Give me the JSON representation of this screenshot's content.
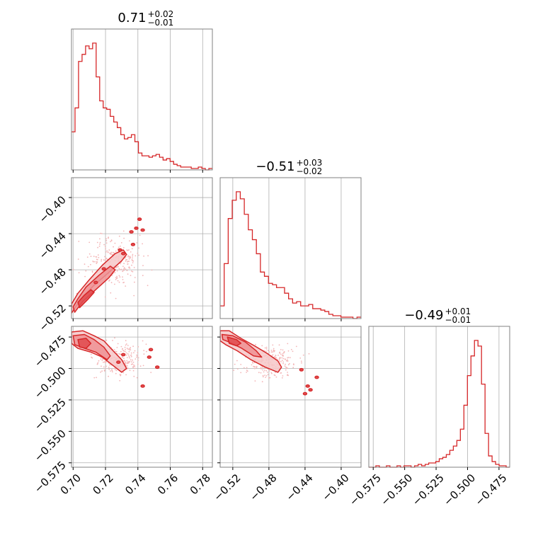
{
  "colors": {
    "accent": "#d62728",
    "fill_light": "#f6c7c8",
    "fill_mid": "#ee9093",
    "fill_dark": "#e04a4e",
    "grid": "#b0b0b0",
    "frame": "#808080",
    "scatter": "#f3b6b7"
  },
  "chart_data": {
    "type": "corner",
    "parameters": [
      {
        "title": {
          "median": "0.71",
          "plus": "+0.02",
          "minus": "−0.01"
        },
        "range": [
          0.699,
          0.786
        ],
        "ticks": [
          0.7,
          0.72,
          0.74,
          0.76,
          0.78
        ],
        "tick_labels": [
          "0.70",
          "0.72",
          "0.74",
          "0.76",
          "0.78"
        ],
        "histogram": [
          0.27,
          0.44,
          0.77,
          0.82,
          0.88,
          0.86,
          0.9,
          0.66,
          0.49,
          0.44,
          0.43,
          0.38,
          0.34,
          0.3,
          0.25,
          0.22,
          0.23,
          0.25,
          0.2,
          0.12,
          0.1,
          0.1,
          0.09,
          0.1,
          0.11,
          0.09,
          0.07,
          0.08,
          0.06,
          0.04,
          0.03,
          0.02,
          0.02,
          0.02,
          0.01,
          0.01,
          0.02,
          0.01,
          0.0,
          0.01
        ]
      },
      {
        "title": {
          "median": "−0.51",
          "plus": "+0.03",
          "minus": "−0.02"
        },
        "range": [
          -0.534,
          -0.378
        ],
        "ticks": [
          -0.52,
          -0.48,
          -0.44,
          -0.4
        ],
        "tick_labels": [
          "−0.52",
          "−0.48",
          "−0.44",
          "−0.40"
        ],
        "histogram": [
          0.09,
          0.39,
          0.71,
          0.84,
          0.9,
          0.85,
          0.74,
          0.63,
          0.56,
          0.46,
          0.33,
          0.3,
          0.25,
          0.24,
          0.22,
          0.22,
          0.18,
          0.14,
          0.11,
          0.12,
          0.09,
          0.09,
          0.1,
          0.07,
          0.07,
          0.06,
          0.05,
          0.03,
          0.02,
          0.02,
          0.01,
          0.01,
          0.01,
          0.0,
          0.01
        ]
      },
      {
        "title": {
          "median": "−0.49",
          "plus": "+0.01",
          "minus": "−0.01"
        },
        "range": [
          -0.5785,
          -0.4665
        ],
        "ticks": [
          -0.575,
          -0.55,
          -0.525,
          -0.5,
          -0.475
        ],
        "tick_labels": [
          "−0.575",
          "−0.550",
          "−0.525",
          "−0.500",
          "−0.475"
        ],
        "histogram": [
          0.0,
          0.0,
          0.01,
          0.0,
          0.0,
          0.01,
          0.0,
          0.0,
          0.01,
          0.0,
          0.01,
          0.01,
          0.0,
          0.01,
          0.02,
          0.01,
          0.02,
          0.03,
          0.03,
          0.04,
          0.06,
          0.07,
          0.09,
          0.12,
          0.15,
          0.19,
          0.27,
          0.44,
          0.65,
          0.79,
          0.9,
          0.86,
          0.59,
          0.24,
          0.08,
          0.04,
          0.02,
          0.01,
          0.01,
          0.0
        ]
      }
    ],
    "contours": [
      {
        "x_param": 0,
        "y_param": 1,
        "levels": [
          {
            "points": [
              [
                0.699,
                -0.528
              ],
              [
                0.705,
                -0.512
              ],
              [
                0.713,
                -0.497
              ],
              [
                0.722,
                -0.483
              ],
              [
                0.73,
                -0.47
              ],
              [
                0.733,
                -0.463
              ],
              [
                0.731,
                -0.458
              ],
              [
                0.726,
                -0.462
              ],
              [
                0.718,
                -0.475
              ],
              [
                0.71,
                -0.491
              ],
              [
                0.703,
                -0.506
              ],
              [
                0.699,
                -0.518
              ]
            ]
          },
          {
            "points": [
              [
                0.701,
                -0.527
              ],
              [
                0.706,
                -0.515
              ],
              [
                0.714,
                -0.502
              ],
              [
                0.722,
                -0.489
              ],
              [
                0.726,
                -0.48
              ],
              [
                0.723,
                -0.476
              ],
              [
                0.716,
                -0.486
              ],
              [
                0.708,
                -0.499
              ],
              [
                0.703,
                -0.512
              ],
              [
                0.7,
                -0.521
              ]
            ]
          },
          {
            "points": [
              [
                0.704,
                -0.522
              ],
              [
                0.709,
                -0.513
              ],
              [
                0.713,
                -0.505
              ],
              [
                0.711,
                -0.502
              ],
              [
                0.707,
                -0.508
              ],
              [
                0.703,
                -0.516
              ]
            ]
          }
        ],
        "islands": [
          [
            0.741,
            -0.424
          ],
          [
            0.739,
            -0.434
          ],
          [
            0.743,
            -0.436
          ],
          [
            0.736,
            -0.438
          ],
          [
            0.729,
            -0.458
          ],
          [
            0.731,
            -0.462
          ],
          [
            0.737,
            -0.452
          ],
          [
            0.719,
            -0.479
          ],
          [
            0.714,
            -0.494
          ]
        ],
        "scatter_seed": 11,
        "scatter_center": [
          0.725,
          -0.47
        ],
        "scatter_spread": [
          0.018,
          0.03
        ]
      },
      {
        "x_param": 0,
        "y_param": 2,
        "levels": [
          {
            "points": [
              [
                0.699,
                -0.471
              ],
              [
                0.706,
                -0.47
              ],
              [
                0.713,
                -0.474
              ],
              [
                0.719,
                -0.478
              ],
              [
                0.724,
                -0.485
              ],
              [
                0.73,
                -0.493
              ],
              [
                0.733,
                -0.5
              ],
              [
                0.73,
                -0.503
              ],
              [
                0.724,
                -0.497
              ],
              [
                0.718,
                -0.491
              ],
              [
                0.711,
                -0.487
              ],
              [
                0.703,
                -0.484
              ],
              [
                0.699,
                -0.48
              ]
            ]
          },
          {
            "points": [
              [
                0.7,
                -0.474
              ],
              [
                0.707,
                -0.473
              ],
              [
                0.713,
                -0.477
              ],
              [
                0.719,
                -0.483
              ],
              [
                0.723,
                -0.49
              ],
              [
                0.721,
                -0.493
              ],
              [
                0.714,
                -0.487
              ],
              [
                0.707,
                -0.484
              ],
              [
                0.701,
                -0.481
              ]
            ]
          },
          {
            "points": [
              [
                0.703,
                -0.477
              ],
              [
                0.708,
                -0.476
              ],
              [
                0.711,
                -0.48
              ],
              [
                0.708,
                -0.484
              ],
              [
                0.704,
                -0.483
              ]
            ]
          }
        ],
        "islands": [
          [
            0.747,
            -0.491
          ],
          [
            0.752,
            -0.499
          ],
          [
            0.731,
            -0.489
          ],
          [
            0.728,
            -0.495
          ],
          [
            0.743,
            -0.514
          ],
          [
            0.748,
            -0.485
          ]
        ],
        "scatter_seed": 23,
        "scatter_center": [
          0.728,
          -0.493
        ],
        "scatter_spread": [
          0.016,
          0.014
        ]
      },
      {
        "x_param": 1,
        "y_param": 2,
        "levels": [
          {
            "points": [
              [
                -0.534,
                -0.47
              ],
              [
                -0.524,
                -0.47
              ],
              [
                -0.511,
                -0.476
              ],
              [
                -0.496,
                -0.482
              ],
              [
                -0.482,
                -0.488
              ],
              [
                -0.47,
                -0.494
              ],
              [
                -0.466,
                -0.499
              ],
              [
                -0.47,
                -0.503
              ],
              [
                -0.484,
                -0.499
              ],
              [
                -0.5,
                -0.493
              ],
              [
                -0.515,
                -0.486
              ],
              [
                -0.528,
                -0.481
              ],
              [
                -0.534,
                -0.478
              ]
            ]
          },
          {
            "points": [
              [
                -0.532,
                -0.473
              ],
              [
                -0.52,
                -0.474
              ],
              [
                -0.506,
                -0.479
              ],
              [
                -0.494,
                -0.486
              ],
              [
                -0.488,
                -0.491
              ],
              [
                -0.497,
                -0.49
              ],
              [
                -0.51,
                -0.484
              ],
              [
                -0.524,
                -0.479
              ],
              [
                -0.531,
                -0.477
              ]
            ]
          },
          {
            "points": [
              [
                -0.526,
                -0.475
              ],
              [
                -0.516,
                -0.477
              ],
              [
                -0.511,
                -0.48
              ],
              [
                -0.516,
                -0.482
              ],
              [
                -0.524,
                -0.48
              ]
            ]
          }
        ],
        "islands": [
          [
            -0.444,
            -0.501
          ],
          [
            -0.437,
            -0.514
          ],
          [
            -0.44,
            -0.52
          ],
          [
            -0.427,
            -0.507
          ],
          [
            -0.434,
            -0.517
          ]
        ],
        "scatter_seed": 37,
        "scatter_center": [
          -0.48,
          -0.495
        ],
        "scatter_spread": [
          0.03,
          0.013
        ]
      }
    ]
  }
}
